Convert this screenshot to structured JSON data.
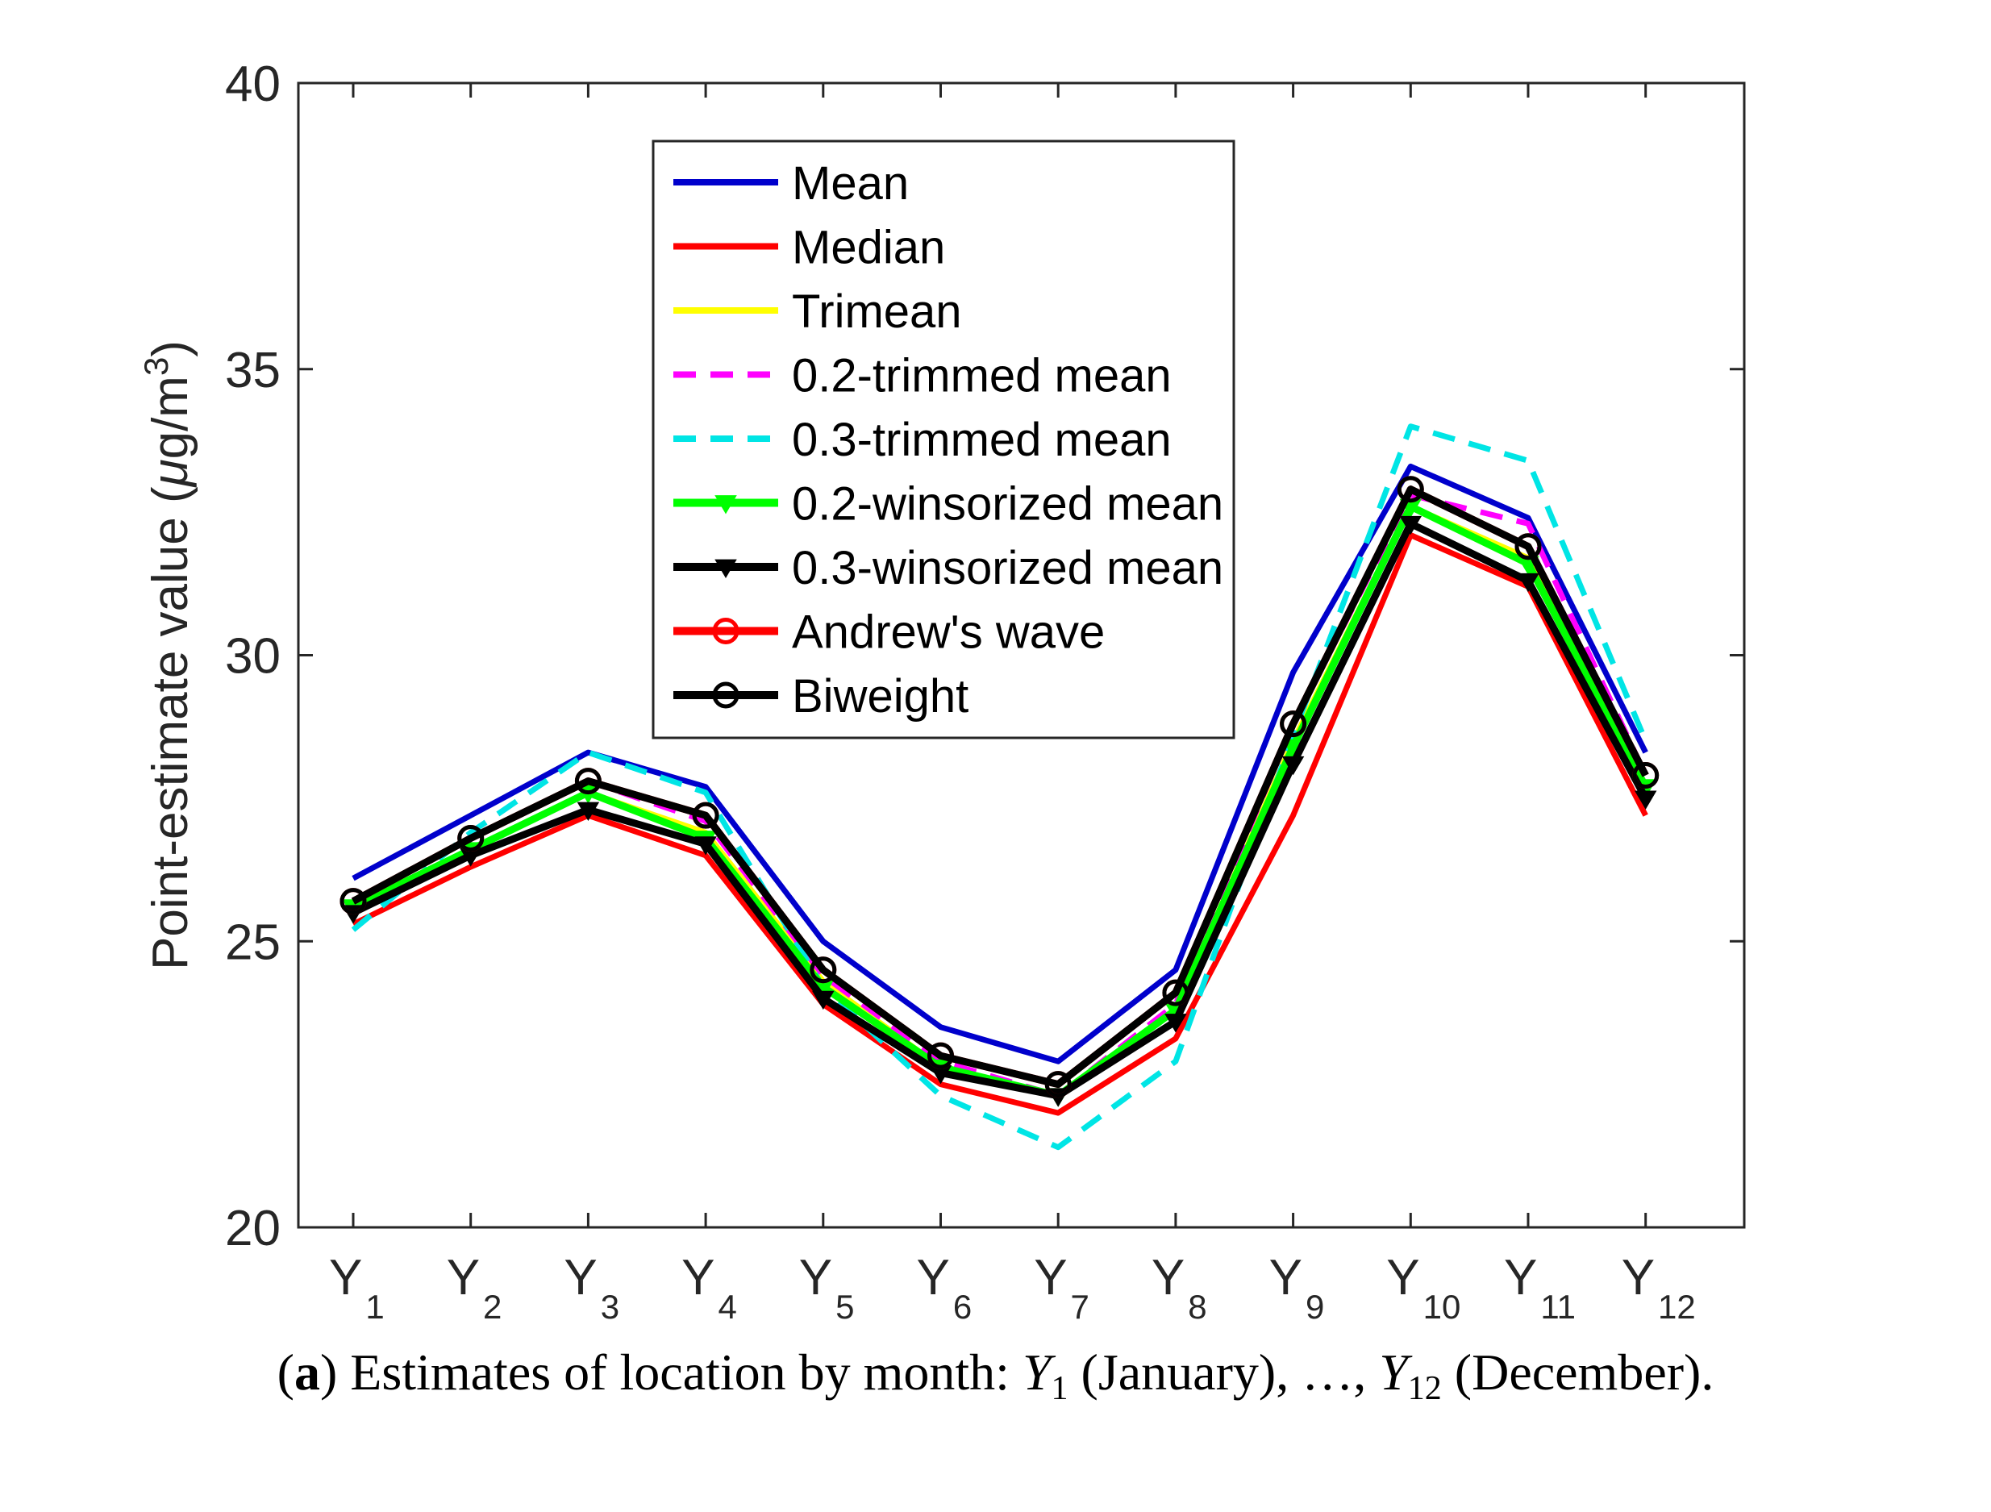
{
  "chart_data": {
    "type": "line",
    "title": "",
    "xlabel": "",
    "ylabel": "Point-estimate value (μg/m³)",
    "ylabel_parts": {
      "main": "Point-estimate value (",
      "mu": "μ",
      "unit": "g/m",
      "sup": "3",
      "close": ")"
    },
    "ylim": [
      20,
      40
    ],
    "yticks": [
      "20",
      "25",
      "30",
      "35",
      "40"
    ],
    "categories": [
      {
        "base": "Y",
        "sub": "1"
      },
      {
        "base": "Y",
        "sub": "2"
      },
      {
        "base": "Y",
        "sub": "3"
      },
      {
        "base": "Y",
        "sub": "4"
      },
      {
        "base": "Y",
        "sub": "5"
      },
      {
        "base": "Y",
        "sub": "6"
      },
      {
        "base": "Y",
        "sub": "7"
      },
      {
        "base": "Y",
        "sub": "8"
      },
      {
        "base": "Y",
        "sub": "9"
      },
      {
        "base": "Y",
        "sub": "10"
      },
      {
        "base": "Y",
        "sub": "11"
      },
      {
        "base": "Y",
        "sub": "12"
      }
    ],
    "legend_position": "top-center",
    "series": [
      {
        "name": "Mean",
        "color": "#0000cc",
        "dash": "solid",
        "marker": "none",
        "values": [
          26.1,
          27.2,
          28.3,
          27.7,
          25.0,
          23.5,
          22.9,
          24.5,
          29.7,
          33.3,
          32.4,
          28.3
        ]
      },
      {
        "name": "Median",
        "color": "#ff0000",
        "dash": "solid",
        "marker": "none",
        "values": [
          25.3,
          26.3,
          27.2,
          26.5,
          23.9,
          22.5,
          22.0,
          23.3,
          27.2,
          32.1,
          31.2,
          27.2
        ]
      },
      {
        "name": "Trimean",
        "color": "#ffff00",
        "dash": "solid",
        "marker": "none",
        "values": [
          25.6,
          26.6,
          27.6,
          26.9,
          24.3,
          22.8,
          22.3,
          23.8,
          28.5,
          32.6,
          31.7,
          27.7
        ]
      },
      {
        "name": "0.2-trimmed mean",
        "color": "#ff00ff",
        "dash": "dash",
        "marker": "none",
        "values": [
          25.7,
          26.8,
          27.8,
          27.1,
          24.4,
          22.9,
          22.3,
          23.9,
          28.8,
          32.8,
          32.3,
          27.9
        ]
      },
      {
        "name": "0.3-trimmed mean",
        "color": "#00e5e5",
        "dash": "dash",
        "marker": "none",
        "values": [
          25.2,
          26.9,
          28.3,
          27.6,
          24.2,
          22.3,
          21.4,
          22.9,
          28.6,
          34.0,
          33.4,
          28.5
        ]
      },
      {
        "name": "0.2-winsorized mean",
        "color": "#00ff00",
        "dash": "solid",
        "marker": "triangle-down",
        "values": [
          25.6,
          26.6,
          27.6,
          26.8,
          24.2,
          22.8,
          22.3,
          23.8,
          28.4,
          32.6,
          31.6,
          27.7
        ]
      },
      {
        "name": "0.3-winsorized mean",
        "color": "#000000",
        "dash": "solid",
        "marker": "triangle-down",
        "values": [
          25.5,
          26.5,
          27.3,
          26.7,
          24.0,
          22.7,
          22.3,
          23.6,
          28.1,
          32.3,
          31.3,
          27.5
        ]
      },
      {
        "name": "Andrew's wave",
        "color": "#ff0000",
        "dash": "solid",
        "marker": "circle",
        "values": [
          25.7,
          26.8,
          27.8,
          27.2,
          24.5,
          23.0,
          22.5,
          24.1,
          28.8,
          32.9,
          31.9,
          27.9
        ]
      },
      {
        "name": "Biweight",
        "color": "#000000",
        "dash": "solid",
        "marker": "circle",
        "values": [
          25.7,
          26.8,
          27.8,
          27.2,
          24.5,
          23.0,
          22.5,
          24.1,
          28.8,
          32.9,
          31.9,
          27.9
        ]
      }
    ]
  },
  "caption": {
    "label": "a",
    "text": " Estimates of location by month: ",
    "y_first_base": "Y",
    "y_first_sub": "1",
    "mid": " (January), …, ",
    "y_last_base": "Y",
    "y_last_sub": "12",
    "end": " (December)."
  }
}
